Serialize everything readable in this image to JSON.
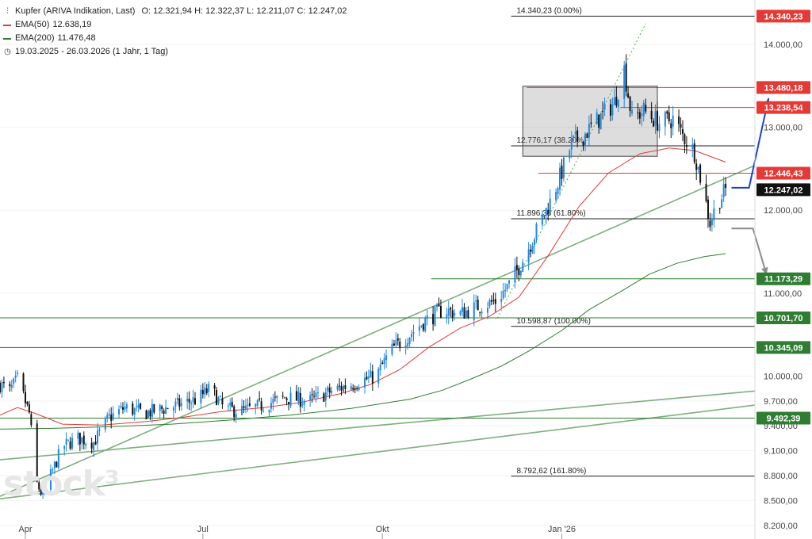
{
  "legend": {
    "title": "Kupfer (ARIVA Indikation, Last)",
    "ohlc": "O: 12.321,94  H: 12.322,37  L: 12.211,07  C: 12.247,02",
    "ema50_label": "EMA(50)",
    "ema50_value": "12.638,19",
    "ema200_label": "EMA(200)",
    "ema200_value": "11.476,48",
    "range": "19.03.2025 - 26.03.2026   (1 Jahr, 1 Tag)",
    "ema50_color": "#e53935",
    "ema200_color": "#2e7d32"
  },
  "watermark": "stock³",
  "chart_data": {
    "type": "candlestick",
    "y_ticks": [
      {
        "v": 14000,
        "t": "14.000,00"
      },
      {
        "v": 13000,
        "t": "13.000,00"
      },
      {
        "v": 12000,
        "t": "12.000,00"
      },
      {
        "v": 11000,
        "t": "11.000,00"
      },
      {
        "v": 10000,
        "t": "10.000,00"
      },
      {
        "v": 9700,
        "t": "9.700,00"
      },
      {
        "v": 9400,
        "t": "9.400,00"
      },
      {
        "v": 9100,
        "t": "9.100,00"
      },
      {
        "v": 8800,
        "t": "8.800,00"
      },
      {
        "v": 8500,
        "t": "8.500,00"
      },
      {
        "v": 8200,
        "t": "8.200,00"
      }
    ],
    "x_ticks": [
      {
        "d": "2025-04-01",
        "t": "Apr"
      },
      {
        "d": "2025-07-01",
        "t": "Jul"
      },
      {
        "d": "2025-10-01",
        "t": "Okt"
      },
      {
        "d": "2026-01-01",
        "t": "Jan '26"
      }
    ],
    "x_range": [
      "2025-03-19",
      "2026-04-10"
    ],
    "y_range": [
      8150,
      14420
    ],
    "price_badges": [
      {
        "v": 14340.23,
        "t": "14.340,23",
        "color": "#e53935"
      },
      {
        "v": 13480.18,
        "t": "13.480,18",
        "color": "#e53935"
      },
      {
        "v": 13238.54,
        "t": "13.238,54",
        "color": "#e53935"
      },
      {
        "v": 12446.43,
        "t": "12.446,43",
        "color": "#e53935"
      },
      {
        "v": 12247.02,
        "t": "12.247,02",
        "color": "#111111"
      },
      {
        "v": 11173.29,
        "t": "11.173,29",
        "color": "#2e7d32"
      },
      {
        "v": 10701.7,
        "t": "10.701,70",
        "color": "#2e7d32"
      },
      {
        "v": 10345.09,
        "t": "10.345,09",
        "color": "#2e7d32"
      },
      {
        "v": 9492.39,
        "t": "9.492,39",
        "color": "#2e7d32"
      }
    ],
    "fib_levels": [
      {
        "v": 14340.23,
        "t": "14.340,23 (0.00%)",
        "from": "2025-12-06"
      },
      {
        "v": 12776.17,
        "t": "12.776,17 (38.20%)",
        "from": "2025-12-06"
      },
      {
        "v": 11896.38,
        "t": "11.896,38 (61.80%)",
        "from": "2025-12-06"
      },
      {
        "v": 10598.87,
        "t": "10.598,87 (100.00%)",
        "from": "2025-12-06"
      },
      {
        "v": 8792.62,
        "t": "8.792,62 (161.80%)",
        "from": "2025-12-06"
      }
    ],
    "resistance_lines": [
      {
        "v": 13480.18,
        "from": "2025-12-14"
      },
      {
        "v": 13238.54,
        "from": "2026-01-31"
      },
      {
        "v": 12446.43,
        "from": "2025-12-20"
      }
    ],
    "support_lines": [
      {
        "v": 11173.29,
        "from": "2025-10-26"
      },
      {
        "v": 10701.7,
        "from": "2025-03-19"
      },
      {
        "v": 10345.09,
        "from": "2025-03-19"
      },
      {
        "v": 9492.39,
        "from": "2025-03-19"
      }
    ],
    "trend_lines": [
      {
        "x1": "2025-03-19",
        "y1": 8550,
        "x2": "2026-04-10",
        "y2": 12540
      },
      {
        "x1": "2025-03-19",
        "y1": 8990,
        "x2": "2026-04-10",
        "y2": 9820
      },
      {
        "x1": "2025-03-19",
        "y1": 8520,
        "x2": "2026-04-10",
        "y2": 9650
      }
    ],
    "dotted_trend": {
      "x1": "2025-11-29",
      "y1": 10700,
      "x2": "2026-02-13",
      "y2": 14250
    },
    "consolidation_box": {
      "x1": "2025-12-12",
      "x2": "2026-02-19",
      "y1": 12650,
      "y2": 13495
    },
    "arrows": [
      {
        "color": "#1e3fd6",
        "points": [
          [
            "2026-03-29",
            12270
          ],
          [
            "2026-04-07",
            12270
          ],
          [
            "2026-04-17",
            13350
          ]
        ]
      },
      {
        "color": "#8c8c8c",
        "points": [
          [
            "2026-03-29",
            11780
          ],
          [
            "2026-04-09",
            11780
          ],
          [
            "2026-04-16",
            11220
          ]
        ]
      }
    ],
    "ema50": [
      [
        "2025-03-19",
        9530
      ],
      [
        "2025-03-28",
        9620
      ],
      [
        "2025-04-06",
        9550
      ],
      [
        "2025-04-20",
        9420
      ],
      [
        "2025-05-10",
        9410
      ],
      [
        "2025-06-01",
        9450
      ],
      [
        "2025-06-20",
        9500
      ],
      [
        "2025-07-10",
        9570
      ],
      [
        "2025-08-01",
        9620
      ],
      [
        "2025-08-20",
        9680
      ],
      [
        "2025-09-10",
        9790
      ],
      [
        "2025-09-25",
        9900
      ],
      [
        "2025-10-10",
        10080
      ],
      [
        "2025-10-25",
        10350
      ],
      [
        "2025-11-10",
        10580
      ],
      [
        "2025-11-25",
        10720
      ],
      [
        "2025-12-10",
        10950
      ],
      [
        "2025-12-25",
        11450
      ],
      [
        "2026-01-10",
        12050
      ],
      [
        "2026-01-25",
        12450
      ],
      [
        "2026-02-10",
        12680
      ],
      [
        "2026-02-25",
        12750
      ],
      [
        "2026-03-10",
        12720
      ],
      [
        "2026-03-26",
        12580
      ]
    ],
    "ema200": [
      [
        "2025-03-19",
        9360
      ],
      [
        "2025-04-15",
        9370
      ],
      [
        "2025-05-15",
        9390
      ],
      [
        "2025-06-15",
        9420
      ],
      [
        "2025-07-15",
        9470
      ],
      [
        "2025-08-15",
        9530
      ],
      [
        "2025-09-15",
        9610
      ],
      [
        "2025-10-15",
        9720
      ],
      [
        "2025-11-01",
        9830
      ],
      [
        "2025-11-15",
        9960
      ],
      [
        "2025-12-01",
        10120
      ],
      [
        "2025-12-15",
        10300
      ],
      [
        "2026-01-01",
        10550
      ],
      [
        "2026-01-15",
        10800
      ],
      [
        "2026-02-01",
        11030
      ],
      [
        "2026-02-15",
        11230
      ],
      [
        "2026-03-01",
        11360
      ],
      [
        "2026-03-15",
        11440
      ],
      [
        "2026-03-26",
        11476
      ]
    ],
    "close_path": [
      [
        "2025-03-19",
        9900
      ],
      [
        "2025-03-24",
        9820
      ],
      [
        "2025-03-28",
        9960
      ],
      [
        "2025-04-03",
        9550
      ],
      [
        "2025-04-07",
        8700
      ],
      [
        "2025-04-10",
        8550
      ],
      [
        "2025-04-14",
        8800
      ],
      [
        "2025-04-20",
        9150
      ],
      [
        "2025-04-28",
        9250
      ],
      [
        "2025-05-06",
        9200
      ],
      [
        "2025-05-14",
        9500
      ],
      [
        "2025-05-22",
        9620
      ],
      [
        "2025-06-01",
        9550
      ],
      [
        "2025-06-15",
        9630
      ],
      [
        "2025-06-28",
        9720
      ],
      [
        "2025-07-05",
        9850
      ],
      [
        "2025-07-12",
        9600
      ],
      [
        "2025-07-22",
        9580
      ],
      [
        "2025-08-01",
        9650
      ],
      [
        "2025-08-12",
        9740
      ],
      [
        "2025-08-25",
        9700
      ],
      [
        "2025-09-05",
        9820
      ],
      [
        "2025-09-15",
        9900
      ],
      [
        "2025-09-28",
        10000
      ],
      [
        "2025-10-05",
        10300
      ],
      [
        "2025-10-15",
        10500
      ],
      [
        "2025-10-22",
        10650
      ],
      [
        "2025-11-01",
        10800
      ],
      [
        "2025-11-10",
        10750
      ],
      [
        "2025-11-20",
        10850
      ],
      [
        "2025-11-28",
        10900
      ],
      [
        "2025-12-05",
        11100
      ],
      [
        "2025-12-12",
        11400
      ],
      [
        "2025-12-18",
        11700
      ],
      [
        "2025-12-26",
        12100
      ],
      [
        "2025-12-31",
        12400
      ],
      [
        "2026-01-06",
        12800
      ],
      [
        "2026-01-12",
        12900
      ],
      [
        "2026-01-20",
        13100
      ],
      [
        "2026-01-28",
        13300
      ],
      [
        "2026-02-02",
        13700
      ],
      [
        "2026-02-06",
        13100
      ],
      [
        "2026-02-12",
        13200
      ],
      [
        "2026-02-20",
        13050
      ],
      [
        "2026-02-27",
        13100
      ],
      [
        "2026-03-04",
        12900
      ],
      [
        "2026-03-10",
        12700
      ],
      [
        "2026-03-14",
        12300
      ],
      [
        "2026-03-18",
        11850
      ],
      [
        "2026-03-21",
        12050
      ],
      [
        "2026-03-26",
        12247
      ]
    ],
    "up_color": "#1e88e5",
    "down_color": "#111111"
  }
}
